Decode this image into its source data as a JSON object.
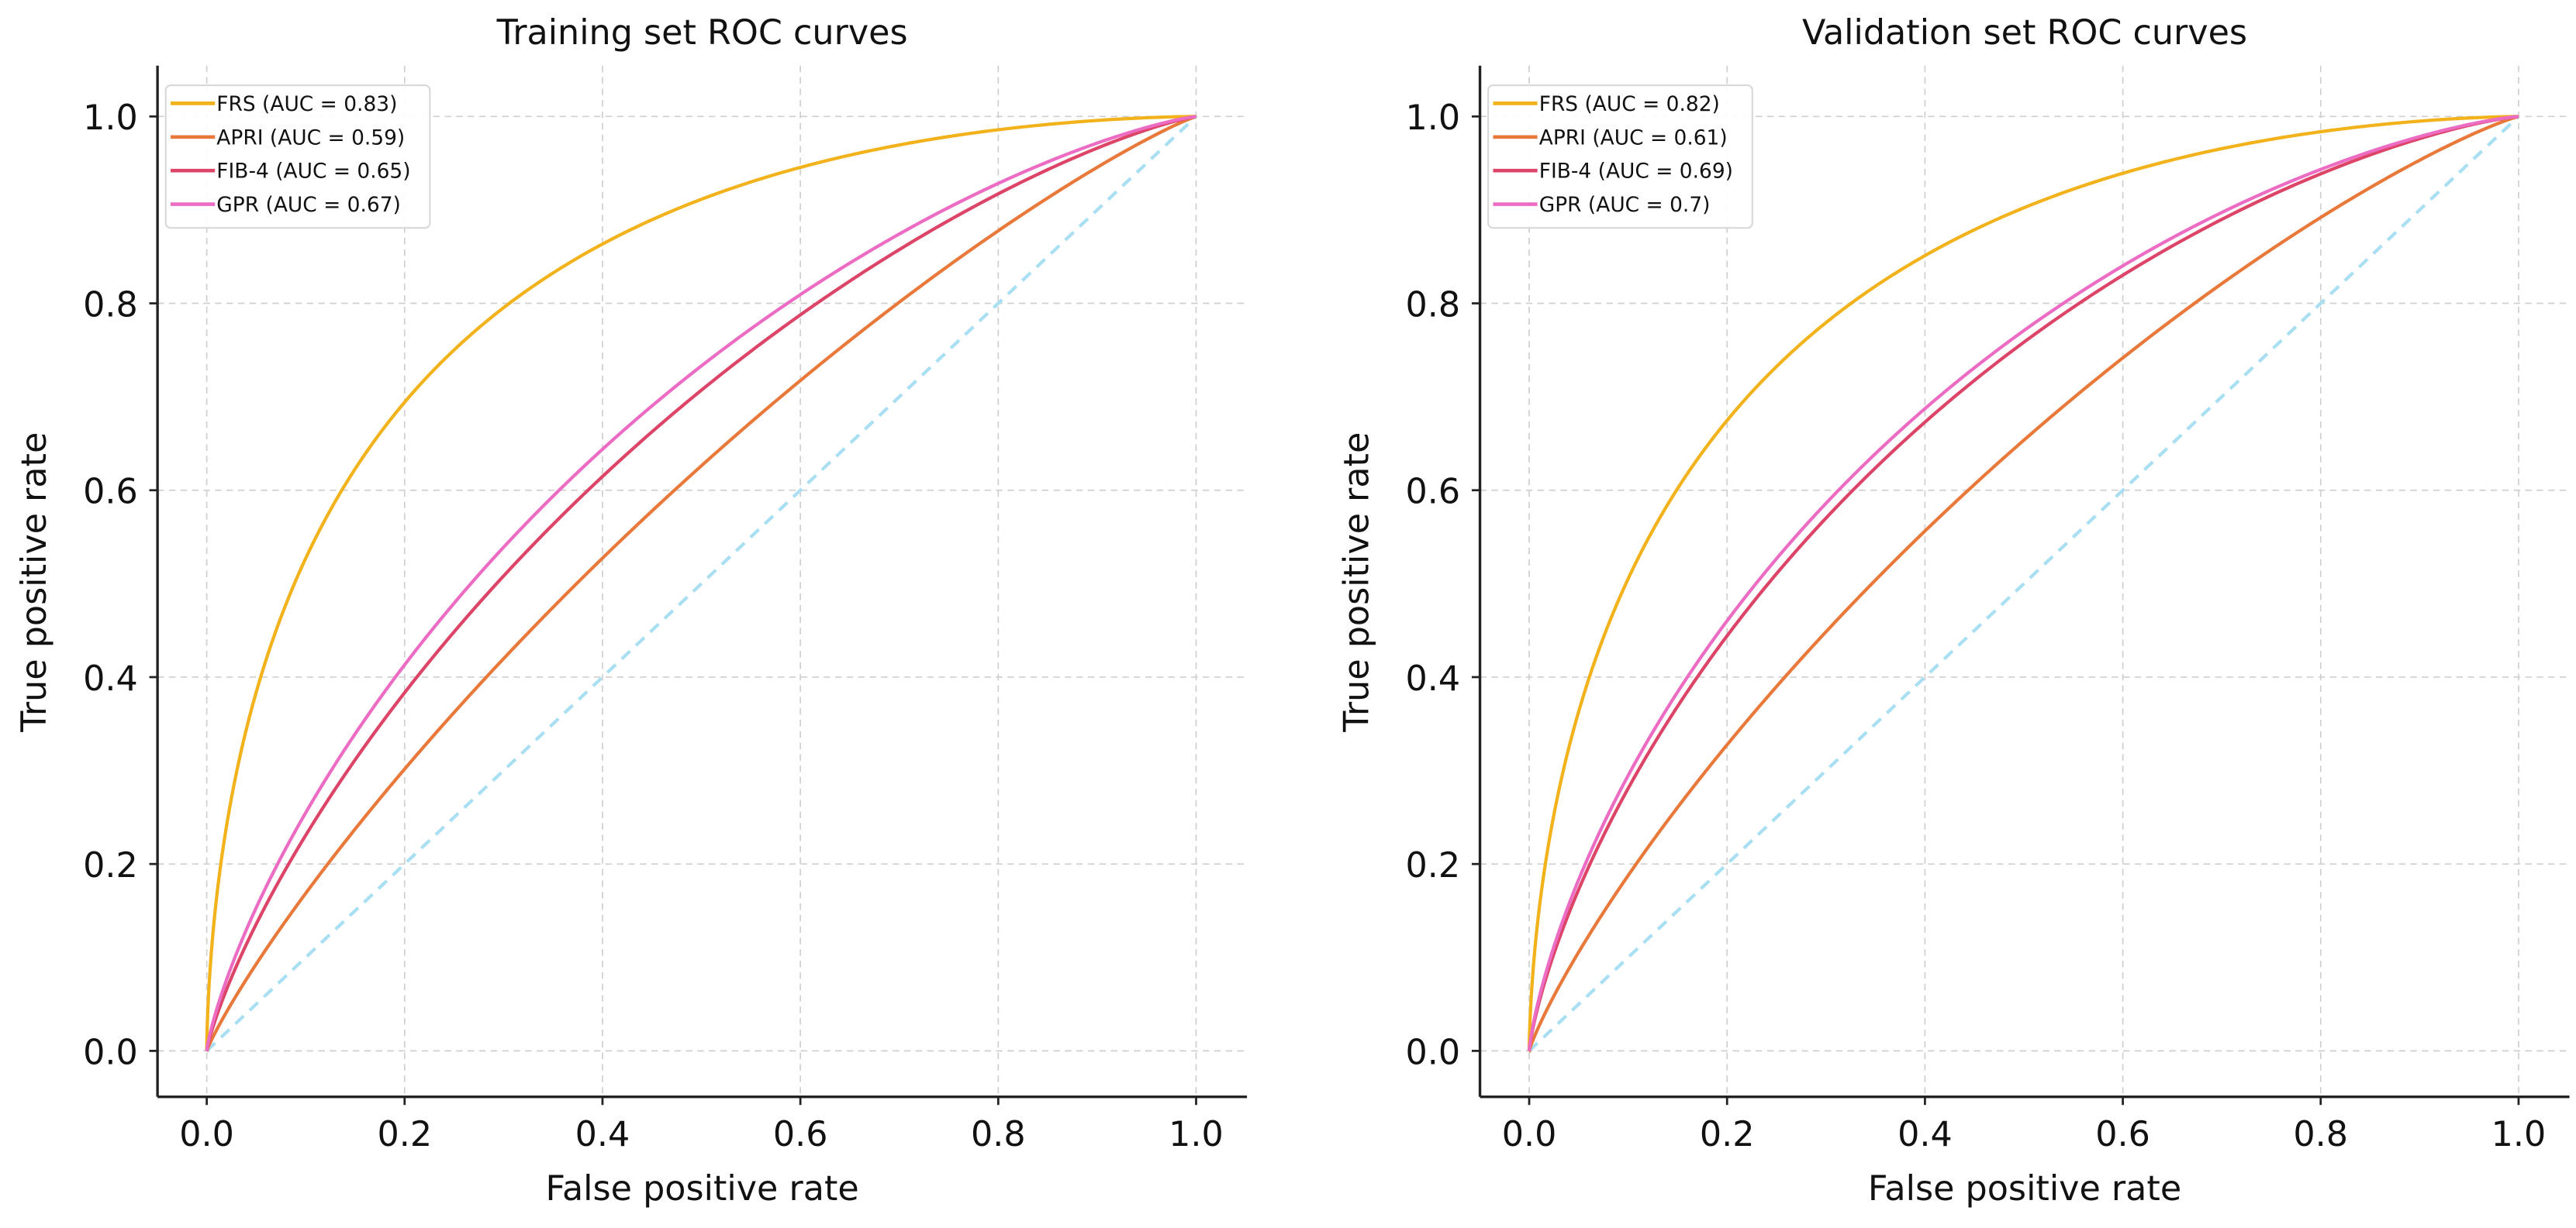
{
  "chart_data": [
    {
      "type": "line",
      "title": "Training set ROC curves",
      "xlabel": "False positive rate",
      "ylabel": "True positive rate",
      "xlim": [
        -0.05,
        1.05
      ],
      "ylim": [
        -0.05,
        1.05
      ],
      "xticks": [
        "0.0",
        "0.2",
        "0.4",
        "0.6",
        "0.8",
        "1.0"
      ],
      "yticks": [
        "0.0",
        "0.2",
        "0.4",
        "0.6",
        "0.8",
        "1.0"
      ],
      "grid": true,
      "legend_position": "top-left",
      "series": [
        {
          "name": "FRS",
          "auc": 0.83,
          "legend_label": "FRS (AUC = 0.83)",
          "color": "#F2B21B"
        },
        {
          "name": "APRI",
          "auc": 0.59,
          "legend_label": "APRI (AUC = 0.59)",
          "color": "#E8793A"
        },
        {
          "name": "FIB-4",
          "auc": 0.65,
          "legend_label": "FIB-4 (AUC = 0.65)",
          "color": "#DC4468"
        },
        {
          "name": "GPR",
          "auc": 0.67,
          "legend_label": "GPR (AUC = 0.67)",
          "color": "#EC6CC4"
        }
      ],
      "reference_line": {
        "x": [
          0,
          1
        ],
        "y": [
          0,
          1
        ],
        "color": "#A9DFF2",
        "style": "dashed"
      }
    },
    {
      "type": "line",
      "title": "Validation set ROC curves",
      "xlabel": "False positive rate",
      "ylabel": "True positive rate",
      "xlim": [
        -0.05,
        1.05
      ],
      "ylim": [
        -0.05,
        1.05
      ],
      "xticks": [
        "0.0",
        "0.2",
        "0.4",
        "0.6",
        "0.8",
        "1.0"
      ],
      "yticks": [
        "0.0",
        "0.2",
        "0.4",
        "0.6",
        "0.8",
        "1.0"
      ],
      "grid": true,
      "legend_position": "top-left",
      "series": [
        {
          "name": "FRS",
          "auc": 0.82,
          "legend_label": "FRS (AUC = 0.82)",
          "color": "#F2B21B"
        },
        {
          "name": "APRI",
          "auc": 0.61,
          "legend_label": "APRI (AUC = 0.61)",
          "color": "#E8793A"
        },
        {
          "name": "FIB-4",
          "auc": 0.69,
          "legend_label": "FIB-4 (AUC = 0.69)",
          "color": "#DC4468"
        },
        {
          "name": "GPR",
          "auc": 0.7,
          "legend_label": "GPR (AUC = 0.7)",
          "color": "#EC6CC4"
        }
      ],
      "reference_line": {
        "x": [
          0,
          1
        ],
        "y": [
          0,
          1
        ],
        "color": "#A9DFF2",
        "style": "dashed"
      }
    }
  ]
}
